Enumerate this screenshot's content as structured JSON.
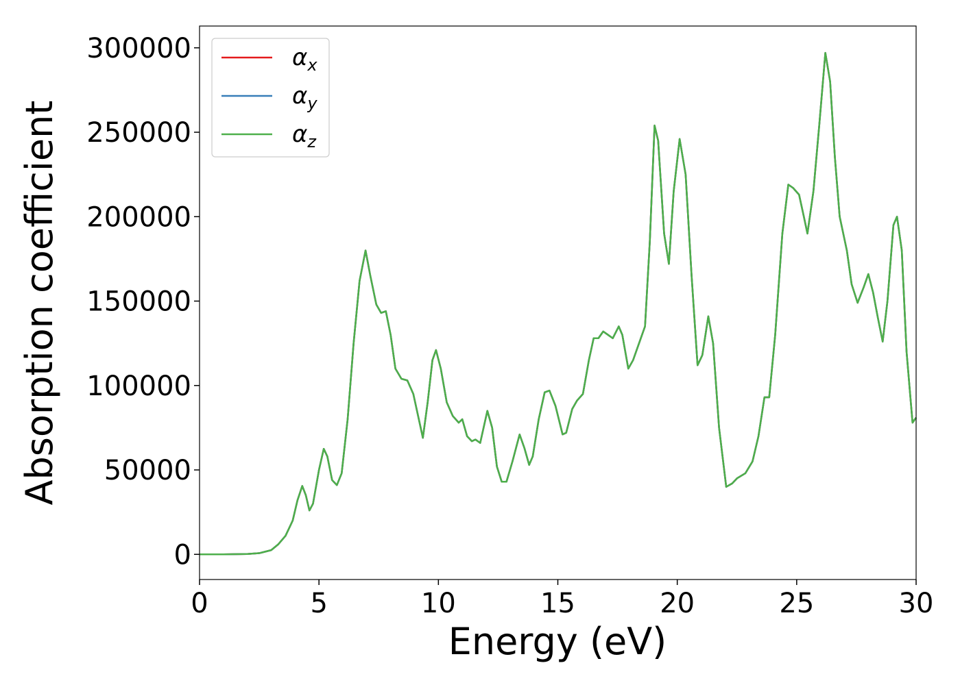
{
  "chart_data": {
    "type": "line",
    "xlabel": "Energy (eV)",
    "ylabel": "Absorption coefficient",
    "x": [
      0,
      1,
      2,
      2.5,
      3,
      3.3,
      3.6,
      3.9,
      4.1,
      4.3,
      4.45,
      4.6,
      4.75,
      5.0,
      5.2,
      5.35,
      5.55,
      5.75,
      5.95,
      6.2,
      6.45,
      6.7,
      6.95,
      7.15,
      7.4,
      7.6,
      7.8,
      8.0,
      8.2,
      8.45,
      8.7,
      8.95,
      9.15,
      9.35,
      9.55,
      9.75,
      9.9,
      10.1,
      10.35,
      10.6,
      10.85,
      11.0,
      11.2,
      11.4,
      11.55,
      11.75,
      12.05,
      12.25,
      12.45,
      12.65,
      12.85,
      13.1,
      13.4,
      13.6,
      13.8,
      13.95,
      14.2,
      14.45,
      14.65,
      14.9,
      15.2,
      15.35,
      15.6,
      15.8,
      16.05,
      16.3,
      16.5,
      16.7,
      16.9,
      17.1,
      17.3,
      17.55,
      17.7,
      17.95,
      18.15,
      18.4,
      18.65,
      18.85,
      19.05,
      19.2,
      19.45,
      19.65,
      19.85,
      20.1,
      20.35,
      20.6,
      20.85,
      21.05,
      21.3,
      21.5,
      21.75,
      22.05,
      22.3,
      22.5,
      22.85,
      23.15,
      23.4,
      23.65,
      23.85,
      24.1,
      24.4,
      24.65,
      24.85,
      25.1,
      25.3,
      25.45,
      25.7,
      25.95,
      26.2,
      26.4,
      26.6,
      26.8,
      27.1,
      27.3,
      27.55,
      27.8,
      28.0,
      28.2,
      28.4,
      28.6,
      28.8,
      29.05,
      29.2,
      29.4,
      29.6,
      29.85,
      30
    ],
    "series": [
      {
        "name": "αx",
        "color": "#e41a1c",
        "values": [
          0,
          0,
          200,
          700,
          2500,
          6000,
          11000,
          20000,
          32000,
          40500,
          35000,
          26000,
          30000,
          50000,
          62500,
          58000,
          44000,
          41000,
          48000,
          80000,
          125000,
          162000,
          180000,
          165000,
          148000,
          143000,
          144000,
          130000,
          110000,
          104000,
          103000,
          95000,
          82000,
          69000,
          90000,
          115000,
          121000,
          110000,
          90000,
          82000,
          78000,
          80000,
          70000,
          67000,
          68000,
          66000,
          85000,
          75000,
          52000,
          43000,
          43000,
          55000,
          71000,
          63000,
          53000,
          58000,
          80000,
          96000,
          97000,
          88000,
          71000,
          72000,
          86000,
          91000,
          95000,
          115000,
          128000,
          128000,
          132000,
          130000,
          128000,
          135000,
          130000,
          110000,
          115000,
          125000,
          135000,
          185000,
          254000,
          245000,
          190000,
          172000,
          215000,
          246000,
          225000,
          165000,
          112000,
          118000,
          141000,
          125000,
          75000,
          40000,
          42000,
          45000,
          48000,
          55000,
          70000,
          93000,
          93000,
          130000,
          190000,
          219000,
          217000,
          213000,
          200000,
          190000,
          215000,
          255000,
          297000,
          280000,
          235000,
          200000,
          180000,
          160000,
          149000,
          158000,
          166000,
          155000,
          140000,
          126000,
          150000,
          195000,
          200000,
          180000,
          120000,
          78000,
          81000
        ]
      },
      {
        "name": "αy",
        "color": "#377eb8",
        "values": [
          0,
          0,
          200,
          700,
          2500,
          6000,
          11000,
          20000,
          32000,
          40500,
          35000,
          26000,
          30000,
          50000,
          62500,
          58000,
          44000,
          41000,
          48000,
          80000,
          125000,
          162000,
          180000,
          165000,
          148000,
          143000,
          144000,
          130000,
          110000,
          104000,
          103000,
          95000,
          82000,
          69000,
          90000,
          115000,
          121000,
          110000,
          90000,
          82000,
          78000,
          80000,
          70000,
          67000,
          68000,
          66000,
          85000,
          75000,
          52000,
          43000,
          43000,
          55000,
          71000,
          63000,
          53000,
          58000,
          80000,
          96000,
          97000,
          88000,
          71000,
          72000,
          86000,
          91000,
          95000,
          115000,
          128000,
          128000,
          132000,
          130000,
          128000,
          135000,
          130000,
          110000,
          115000,
          125000,
          135000,
          185000,
          254000,
          245000,
          190000,
          172000,
          215000,
          246000,
          225000,
          165000,
          112000,
          118000,
          141000,
          125000,
          75000,
          40000,
          42000,
          45000,
          48000,
          55000,
          70000,
          93000,
          93000,
          130000,
          190000,
          219000,
          217000,
          213000,
          200000,
          190000,
          215000,
          255000,
          297000,
          280000,
          235000,
          200000,
          180000,
          160000,
          149000,
          158000,
          166000,
          155000,
          140000,
          126000,
          150000,
          195000,
          200000,
          180000,
          120000,
          78000,
          81000
        ]
      },
      {
        "name": "αz",
        "color": "#4daf4a",
        "values": [
          0,
          0,
          200,
          700,
          2500,
          6000,
          11000,
          20000,
          32000,
          40500,
          35000,
          26000,
          30000,
          50000,
          62500,
          58000,
          44000,
          41000,
          48000,
          80000,
          125000,
          162000,
          180000,
          165000,
          148000,
          143000,
          144000,
          130000,
          110000,
          104000,
          103000,
          95000,
          82000,
          69000,
          90000,
          115000,
          121000,
          110000,
          90000,
          82000,
          78000,
          80000,
          70000,
          67000,
          68000,
          66000,
          85000,
          75000,
          52000,
          43000,
          43000,
          55000,
          71000,
          63000,
          53000,
          58000,
          80000,
          96000,
          97000,
          88000,
          71000,
          72000,
          86000,
          91000,
          95000,
          115000,
          128000,
          128000,
          132000,
          130000,
          128000,
          135000,
          130000,
          110000,
          115000,
          125000,
          135000,
          185000,
          254000,
          245000,
          190000,
          172000,
          215000,
          246000,
          225000,
          165000,
          112000,
          118000,
          141000,
          125000,
          75000,
          40000,
          42000,
          45000,
          48000,
          55000,
          70000,
          93000,
          93000,
          130000,
          190000,
          219000,
          217000,
          213000,
          200000,
          190000,
          215000,
          255000,
          297000,
          280000,
          235000,
          200000,
          180000,
          160000,
          149000,
          158000,
          166000,
          155000,
          140000,
          126000,
          150000,
          195000,
          200000,
          180000,
          120000,
          78000,
          81000
        ]
      }
    ],
    "xlim": [
      0,
      30
    ],
    "xticks": [
      0,
      5,
      10,
      15,
      20,
      25,
      30
    ],
    "ylim": [
      -14900,
      312900
    ],
    "yticks": [
      0,
      50000,
      100000,
      150000,
      200000,
      250000,
      300000
    ],
    "grid": false,
    "legend": "upper left"
  }
}
